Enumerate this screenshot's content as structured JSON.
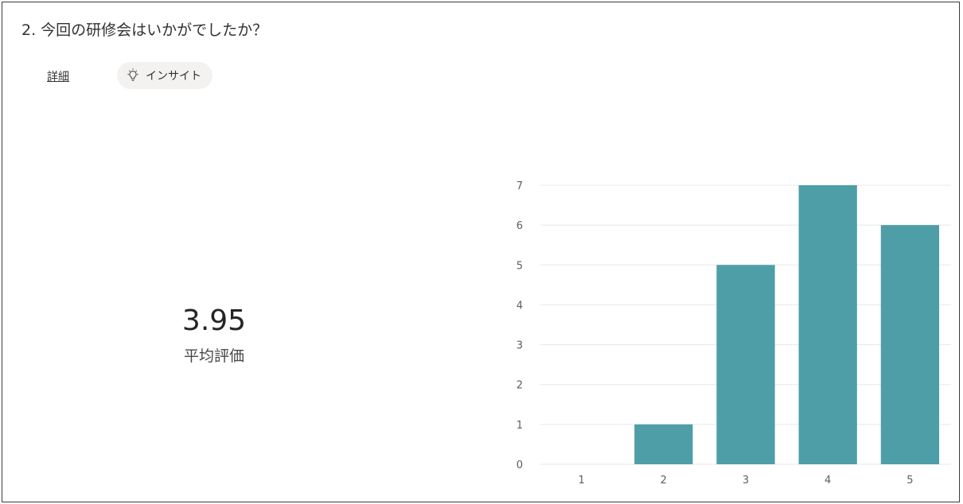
{
  "question": {
    "title": "2. 今回の研修会はいかがでしたか？"
  },
  "links": {
    "details_label": "詳細"
  },
  "insight": {
    "label": "インサイト",
    "icon": "lightbulb-icon"
  },
  "summary": {
    "average": "3.95",
    "average_label": "平均評価"
  },
  "colors": {
    "bar": "#4e9ea8",
    "grid": "#e8e8e8",
    "text": "#323130"
  },
  "chart_data": {
    "type": "bar",
    "categories": [
      "1",
      "2",
      "3",
      "4",
      "5"
    ],
    "values": [
      0,
      1,
      5,
      7,
      6
    ],
    "ylim": [
      0,
      7
    ],
    "yticks": [
      0,
      1,
      2,
      3,
      4,
      5,
      6,
      7
    ],
    "grid": true,
    "legend": "none"
  }
}
